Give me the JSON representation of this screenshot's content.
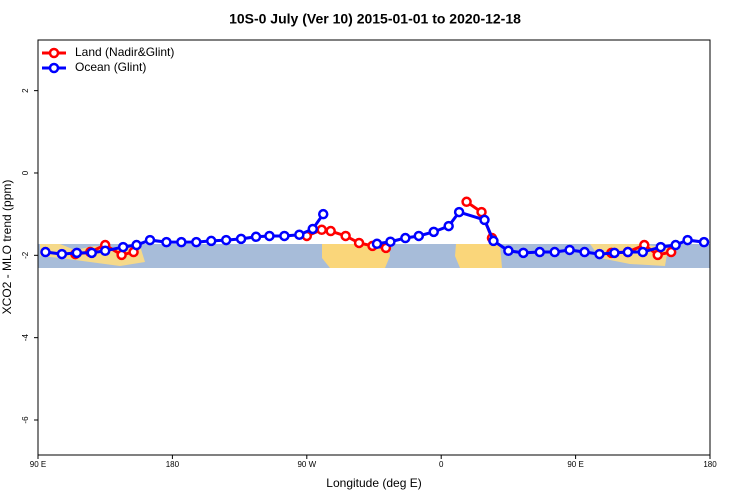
{
  "chart_data": {
    "type": "line",
    "title": "10S-0 July (Ver 10)   2015-01-01 to 2020-12-18",
    "x_label": "Longitude (deg E)",
    "y_label": "XCO2 - MLO trend (ppm)",
    "xlim": [
      90,
      540
    ],
    "ylim": [
      -6.85,
      3.23
    ],
    "xticks": [
      {
        "value": 90,
        "label": "90 E"
      },
      {
        "value": 180,
        "label": "180"
      },
      {
        "value": 270,
        "label": "90 W"
      },
      {
        "value": 360,
        "label": "0"
      },
      {
        "value": 450,
        "label": "90 E"
      },
      {
        "value": 540,
        "label": "180"
      }
    ],
    "yticks": [
      2,
      0,
      -2,
      -4,
      -6
    ],
    "legend": "top-left",
    "series": [
      {
        "name": "Land (Nadir&Glint)",
        "color": "#ff0000",
        "x": [
          115,
          125,
          135,
          146,
          154,
          null,
          270,
          280,
          286,
          296,
          305,
          314,
          323,
          null,
          377,
          387,
          394,
          null,
          474,
          485,
          496,
          505,
          514
        ],
        "values": [
          -1.97,
          -1.92,
          -1.75,
          -1.99,
          -1.92,
          null,
          -1.53,
          -1.38,
          -1.41,
          -1.53,
          -1.7,
          -1.77,
          -1.82,
          null,
          -0.7,
          -0.95,
          -1.58,
          null,
          -1.94,
          -1.92,
          -1.75,
          -1.99,
          -1.92
        ]
      },
      {
        "name": "Ocean (Glint)",
        "color": "#0000ff",
        "x": [
          95,
          106,
          116,
          126,
          135,
          147,
          156,
          165,
          176,
          186,
          196,
          206,
          216,
          226,
          236,
          245,
          255,
          265,
          274,
          281,
          null,
          317,
          326,
          336,
          345,
          355,
          365,
          372,
          389,
          395,
          405,
          415,
          426,
          436,
          446,
          456,
          466,
          476,
          485,
          495,
          507,
          517,
          525,
          536
        ],
        "values": [
          -1.92,
          -1.97,
          -1.94,
          -1.94,
          -1.89,
          -1.8,
          -1.75,
          -1.63,
          -1.68,
          -1.68,
          -1.68,
          -1.65,
          -1.63,
          -1.6,
          -1.55,
          -1.53,
          -1.53,
          -1.5,
          -1.36,
          -1.0,
          null,
          -1.72,
          -1.67,
          -1.58,
          -1.53,
          -1.43,
          -1.29,
          -0.95,
          -1.14,
          -1.65,
          -1.89,
          -1.94,
          -1.92,
          -1.92,
          -1.87,
          -1.92,
          -1.97,
          -1.94,
          -1.92,
          -1.92,
          -1.8,
          -1.75,
          -1.63,
          -1.68
        ]
      }
    ]
  }
}
